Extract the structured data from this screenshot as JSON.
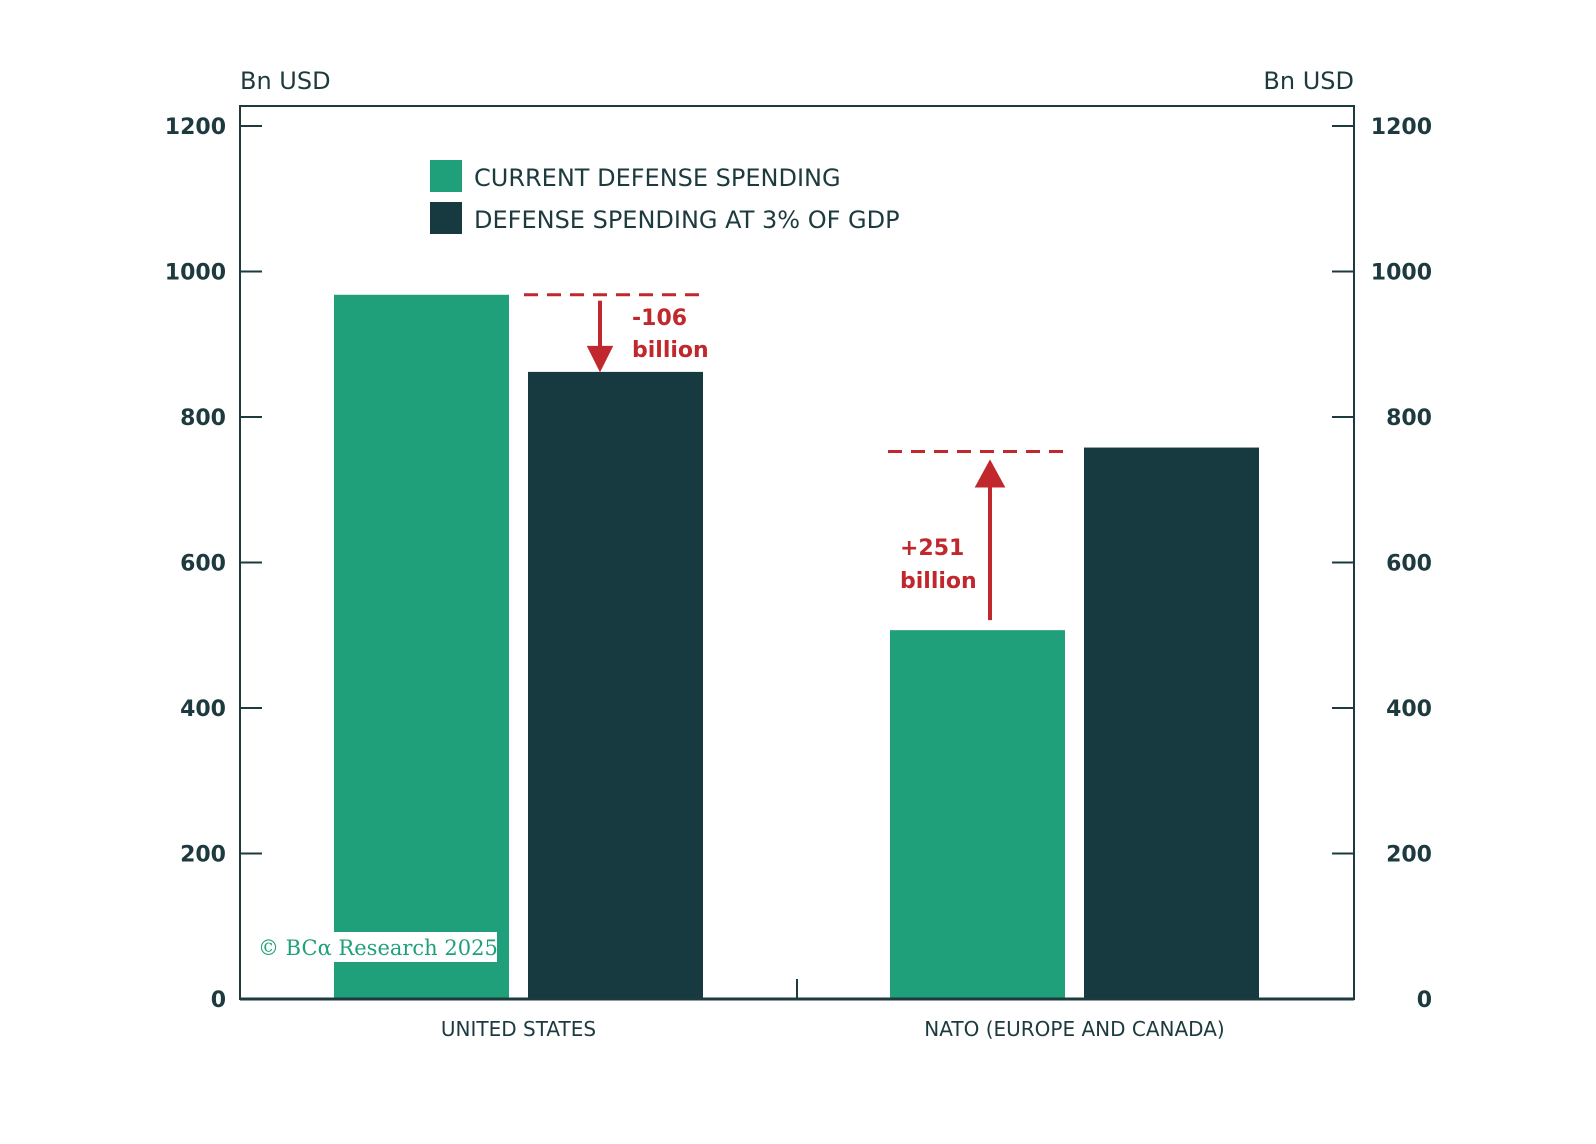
{
  "chart_data": {
    "type": "bar",
    "categories": [
      "UNITED STATES",
      "NATO (EUROPE AND CANADA)"
    ],
    "series": [
      {
        "name": "CURRENT DEFENSE SPENDING",
        "values": [
          968,
          507
        ],
        "color": "#1fa07a"
      },
      {
        "name": "DEFENSE SPENDING AT 3% OF GDP",
        "values": [
          862,
          758
        ],
        "color": "#163a40"
      }
    ],
    "ylabel_left": "Bn USD",
    "ylabel_right": "Bn USD",
    "ylim": [
      0,
      1200
    ],
    "yticks": [
      "0",
      "200",
      "400",
      "600",
      "800",
      "1000",
      "1200"
    ],
    "grid": false,
    "legend_position": "top-left",
    "annotations": [
      {
        "category": 0,
        "direction": "down",
        "line1": "-106",
        "line2": "billion"
      },
      {
        "category": 1,
        "direction": "up",
        "line1": "+251",
        "line2": "billion"
      }
    ],
    "annotation_color": "#c0282d",
    "watermark": "© BCα Research 2025"
  }
}
